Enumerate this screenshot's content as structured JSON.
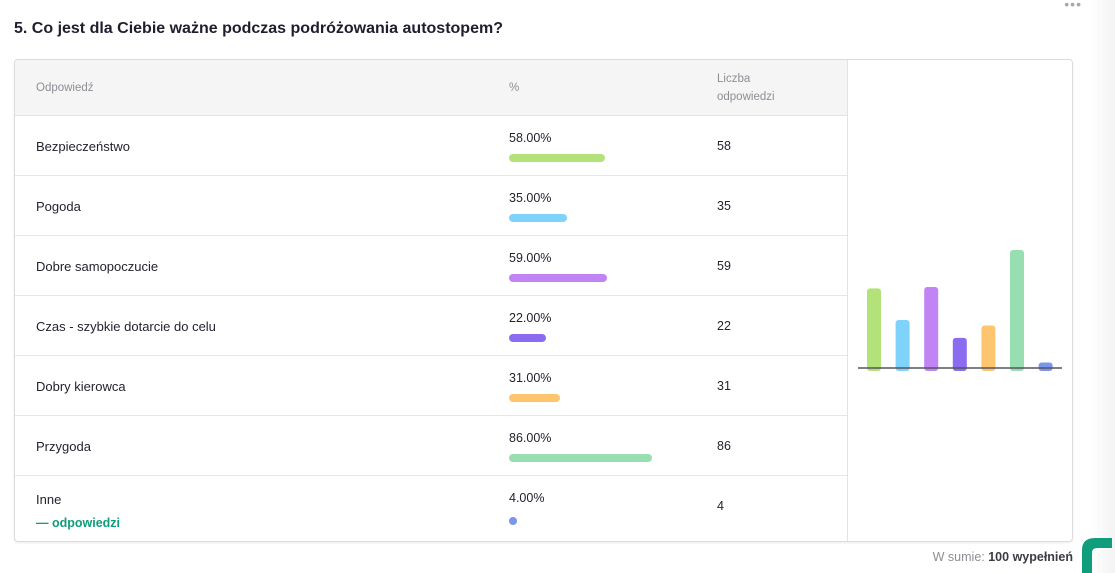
{
  "question": {
    "title": "5. Co jest dla Ciebie ważne podczas podróżowania autostopem?"
  },
  "table": {
    "headers": {
      "answer": "Odpowiedź",
      "percent": "%",
      "count_line1": "Liczba",
      "count_line2": "odpowiedzi"
    },
    "rows": [
      {
        "answer": "Bezpieczeństwo",
        "percent": "58.00%",
        "count": "58",
        "color": "#b3e27a"
      },
      {
        "answer": "Pogoda",
        "percent": "35.00%",
        "count": "35",
        "color": "#7fd3fb"
      },
      {
        "answer": "Dobre samopoczucie",
        "percent": "59.00%",
        "count": "59",
        "color": "#c084f5"
      },
      {
        "answer": "Czas - szybkie dotarcie do celu",
        "percent": "22.00%",
        "count": "22",
        "color": "#8b6cf0"
      },
      {
        "answer": "Dobry kierowca",
        "percent": "31.00%",
        "count": "31",
        "color": "#fcc56e"
      },
      {
        "answer": "Przygoda",
        "percent": "86.00%",
        "count": "86",
        "color": "#97dfb0"
      },
      {
        "answer": "Inne",
        "percent": "4.00%",
        "count": "4",
        "color": "#7b95ec",
        "link": "— odpowiedzi"
      }
    ]
  },
  "chart_data": {
    "type": "bar",
    "categories": [
      "Bezpieczeństwo",
      "Pogoda",
      "Dobre samopoczucie",
      "Czas - szybkie dotarcie do celu",
      "Dobry kierowca",
      "Przygoda",
      "Inne"
    ],
    "values": [
      58,
      35,
      59,
      22,
      31,
      86,
      4
    ],
    "colors": [
      "#b3e27a",
      "#7fd3fb",
      "#c084f5",
      "#8b6cf0",
      "#fcc56e",
      "#97dfb0",
      "#7b95ec"
    ],
    "ylim": [
      0,
      86
    ],
    "grid": false,
    "legend": "none"
  },
  "footer": {
    "prefix": "W sumie:",
    "total": "100 wypełnień"
  },
  "icons": {
    "menu": "more-dots-icon",
    "logo": "brand-logo-icon"
  },
  "colors": {
    "accent": "#0f9d7b"
  }
}
